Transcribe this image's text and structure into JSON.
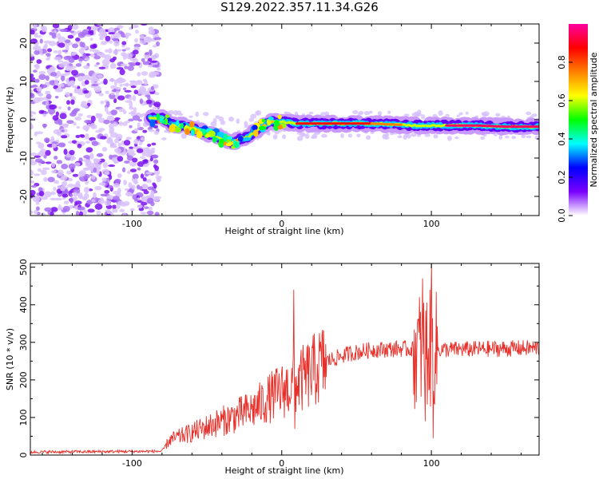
{
  "figure": {
    "title": "S129.2022.357.11.34.G26"
  },
  "chart_data": [
    {
      "type": "heatmap",
      "xlabel": "Height of straight line (km)",
      "ylabel": "Frequency (Hz)",
      "xlim": [
        -168,
        172
      ],
      "ylim": [
        -25,
        25
      ],
      "xticks": [
        -100,
        0,
        100
      ],
      "yticks": [
        -20,
        -10,
        0,
        10,
        20
      ],
      "colorbar": {
        "label": "Normalized spectral amplitude",
        "range": [
          0,
          1
        ],
        "ticks": [
          0.0,
          0.2,
          0.4,
          0.6,
          0.8
        ],
        "colormap": [
          "#ffffff",
          "#7a00ff",
          "#0000ff",
          "#00ffff",
          "#00ff00",
          "#ffff00",
          "#ff8000",
          "#ff0000",
          "#ff00a0"
        ]
      },
      "noise_region_x": [
        -168,
        -88
      ],
      "ridge": [
        {
          "x": -88,
          "f": 0.5
        },
        {
          "x": -80,
          "f": 0.5
        },
        {
          "x": -72,
          "f": -1.5
        },
        {
          "x": -65,
          "f": -1.5
        },
        {
          "x": -58,
          "f": -2.5
        },
        {
          "x": -50,
          "f": -3.5
        },
        {
          "x": -45,
          "f": -4.0
        },
        {
          "x": -38,
          "f": -5.5
        },
        {
          "x": -33,
          "f": -6.0
        },
        {
          "x": -28,
          "f": -5.0
        },
        {
          "x": -22,
          "f": -4.5
        },
        {
          "x": -18,
          "f": -3.0
        },
        {
          "x": -12,
          "f": -1.5
        },
        {
          "x": -6,
          "f": -0.5
        },
        {
          "x": 0,
          "f": -0.5
        },
        {
          "x": 10,
          "f": -1.0
        },
        {
          "x": 30,
          "f": -1.0
        },
        {
          "x": 60,
          "f": -1.0
        },
        {
          "x": 90,
          "f": -1.5
        },
        {
          "x": 110,
          "f": -1.5
        },
        {
          "x": 130,
          "f": -1.5
        },
        {
          "x": 150,
          "f": -1.8
        },
        {
          "x": 172,
          "f": -1.8
        }
      ]
    },
    {
      "type": "line",
      "xlabel": "Height of straight line (km)",
      "ylabel": "SNR (10 * v/v)",
      "xlim": [
        -168,
        172
      ],
      "ylim": [
        0,
        510
      ],
      "xticks": [
        -100,
        0,
        100
      ],
      "yticks": [
        0,
        100,
        200,
        300,
        400,
        500
      ],
      "color": "#e8302a",
      "trend": [
        {
          "x": -168,
          "y": 8
        },
        {
          "x": -80,
          "y": 10
        },
        {
          "x": -75,
          "y": 40
        },
        {
          "x": -60,
          "y": 60
        },
        {
          "x": -40,
          "y": 90
        },
        {
          "x": -20,
          "y": 120
        },
        {
          "x": -5,
          "y": 160
        },
        {
          "x": 10,
          "y": 190
        },
        {
          "x": 20,
          "y": 220
        },
        {
          "x": 30,
          "y": 250
        },
        {
          "x": 45,
          "y": 270
        },
        {
          "x": 60,
          "y": 280
        },
        {
          "x": 80,
          "y": 283
        },
        {
          "x": 100,
          "y": 280
        },
        {
          "x": 130,
          "y": 282
        },
        {
          "x": 172,
          "y": 285
        }
      ],
      "spikes": [
        {
          "x": 8,
          "y": 440
        },
        {
          "x": 8.7,
          "y": 70
        },
        {
          "x": 94,
          "y": 470
        },
        {
          "x": 96,
          "y": 90
        },
        {
          "x": 100,
          "y": 510
        },
        {
          "x": 101,
          "y": 45
        }
      ]
    }
  ]
}
